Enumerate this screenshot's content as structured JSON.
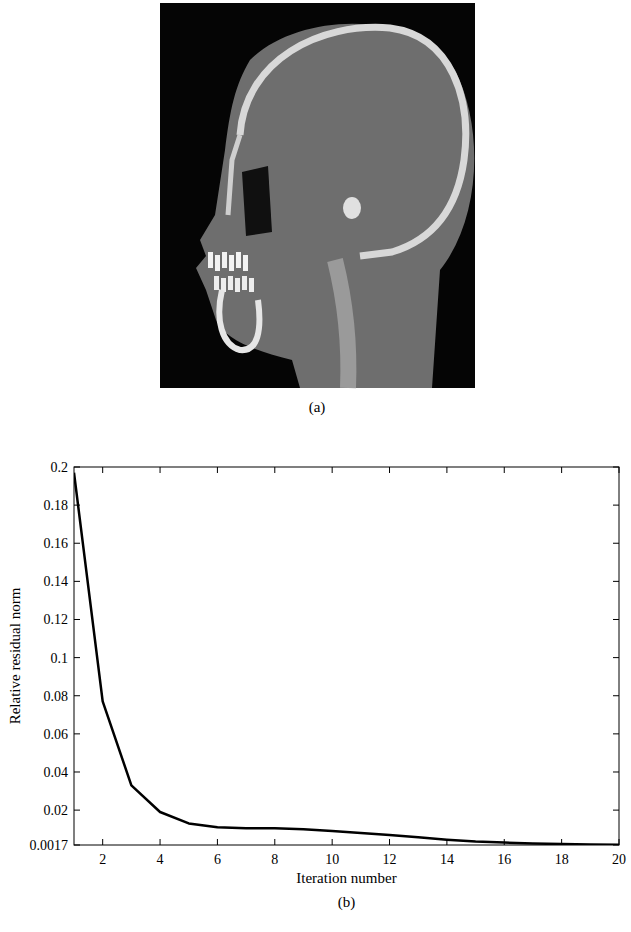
{
  "figure_a": {
    "caption": "(a)"
  },
  "chart_data": {
    "type": "line",
    "caption": "(b)",
    "x_label": "Iteration number",
    "y_label": "Relative residual norm",
    "x": [
      1,
      2,
      3,
      4,
      5,
      6,
      7,
      8,
      9,
      10,
      11,
      12,
      13,
      14,
      15,
      16,
      17,
      18,
      19,
      20
    ],
    "values": [
      0.197,
      0.077,
      0.033,
      0.019,
      0.013,
      0.011,
      0.0105,
      0.0105,
      0.01,
      0.009,
      0.008,
      0.007,
      0.0058,
      0.0045,
      0.0035,
      0.003,
      0.0025,
      0.0022,
      0.002,
      0.0018
    ],
    "color": "#000000",
    "xlim": [
      1,
      20
    ],
    "xticks": [
      2,
      4,
      6,
      8,
      10,
      12,
      14,
      16,
      18,
      20
    ],
    "ylim": [
      0.0017,
      0.2
    ],
    "yticks": [
      0.0017,
      0.02,
      0.04,
      0.06,
      0.08,
      0.1,
      0.12,
      0.14,
      0.16,
      0.18,
      0.2
    ],
    "grid": false
  }
}
